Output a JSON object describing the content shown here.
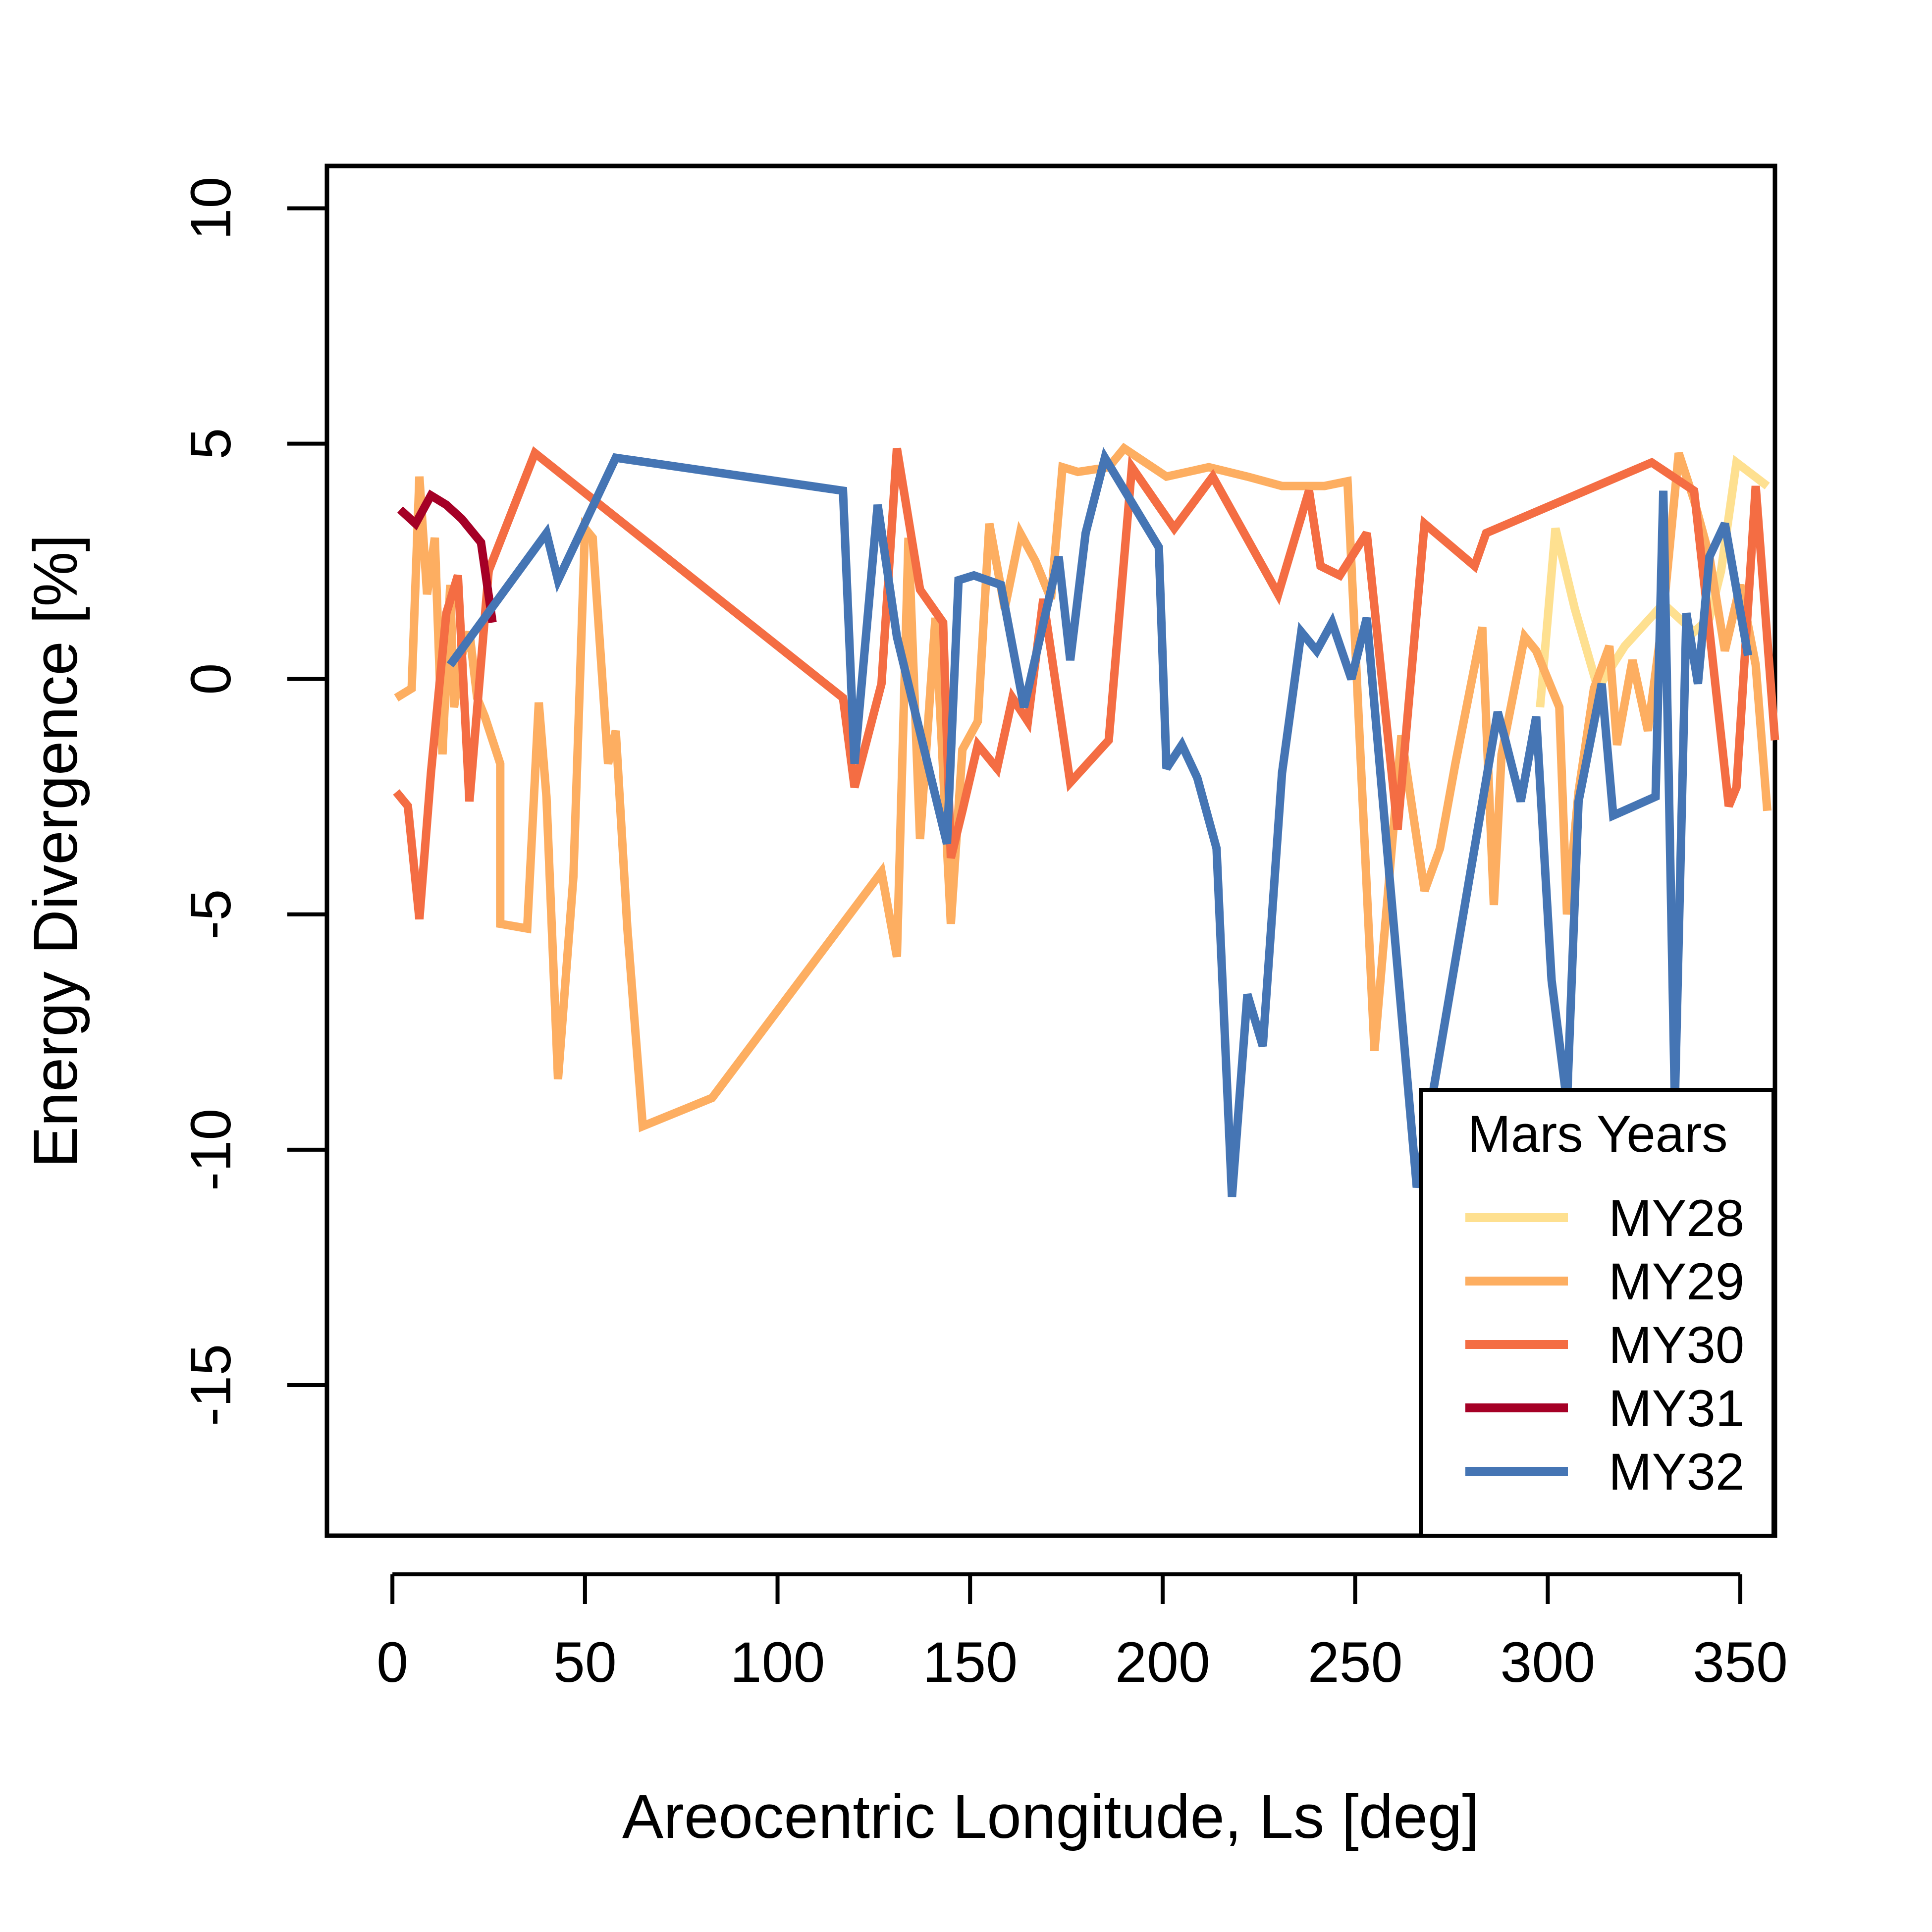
{
  "chart_data": {
    "type": "line",
    "title": "",
    "xlabel": "Areocentric Longitude, Ls [deg]",
    "ylabel": "Energy Divergence [%]",
    "xlim": [
      -17,
      359
    ],
    "ylim": [
      -18.2,
      10.9
    ],
    "xticks": [
      0,
      50,
      100,
      150,
      200,
      250,
      300,
      350
    ],
    "xtick_labels": [
      "0",
      "50",
      "100",
      "150",
      "200",
      "250",
      "300",
      "350"
    ],
    "yticks": [
      -15,
      -10,
      -5,
      0,
      5,
      10
    ],
    "ytick_labels": [
      "-15",
      "-10",
      "-5",
      "0",
      "5",
      "10"
    ],
    "grid": false,
    "legend": {
      "title": "Mars Years",
      "position": "bottom-right"
    },
    "series": [
      {
        "name": "MY28",
        "color": "#FEE090",
        "x": [
          298,
          302,
          307,
          313,
          320,
          330,
          338,
          342,
          345,
          349,
          357
        ],
        "y": [
          -0.6,
          3.2,
          1.5,
          -0.2,
          0.7,
          1.6,
          1.0,
          1.3,
          2.3,
          4.6,
          4.1
        ]
      },
      {
        "name": "MY29",
        "color": "#FDAE61",
        "x": [
          1,
          5,
          7,
          9,
          11,
          13,
          15,
          16,
          18,
          20,
          22,
          24,
          28,
          28,
          35,
          38,
          40,
          43,
          47,
          50,
          52,
          56,
          58,
          61,
          65,
          83,
          127,
          131,
          134,
          137,
          141,
          145,
          148,
          152,
          155,
          159,
          163,
          167,
          171,
          174,
          178,
          186,
          190,
          201,
          212,
          222,
          231,
          242,
          248,
          255,
          262,
          268,
          272,
          276,
          283,
          286,
          288,
          294,
          297,
          303,
          305,
          308,
          312,
          316,
          318,
          322,
          326,
          330,
          334,
          338,
          342,
          346,
          350,
          354,
          357
        ],
        "y": [
          -0.4,
          -0.2,
          4.3,
          1.8,
          3.0,
          -1.6,
          2.0,
          -0.6,
          0.5,
          1.0,
          -0.4,
          -0.8,
          -1.8,
          -5.2,
          -5.3,
          -0.5,
          -2.5,
          -8.5,
          -4.2,
          3.2,
          3.0,
          -1.8,
          -1.1,
          -5.3,
          -9.5,
          -8.9,
          -4.1,
          -5.9,
          3.0,
          -3.4,
          1.3,
          -5.2,
          -1.5,
          -0.9,
          3.3,
          1.5,
          3.1,
          2.5,
          1.7,
          4.5,
          4.4,
          4.5,
          4.9,
          4.3,
          4.5,
          4.3,
          4.1,
          4.1,
          4.2,
          -7.9,
          -1.2,
          -4.5,
          -3.6,
          -1.8,
          1.1,
          -4.8,
          -1.6,
          0.9,
          0.6,
          -0.6,
          -5.0,
          -2.4,
          -0.2,
          0.7,
          -1.4,
          0.4,
          -1.1,
          1.4,
          4.8,
          3.8,
          2.6,
          0.6,
          2.0,
          0.3,
          -2.8
        ]
      },
      {
        "name": "MY30",
        "color": "#F46D43",
        "x": [
          1,
          4,
          7,
          10,
          14,
          17,
          20,
          25,
          37,
          117,
          120,
          127,
          131,
          137,
          143,
          145,
          148,
          152,
          157,
          161,
          165,
          169,
          176,
          186,
          192,
          203,
          213,
          230,
          238,
          241,
          246,
          253,
          261,
          268,
          281,
          284,
          327,
          338,
          347,
          349,
          354,
          359
        ],
        "y": [
          -2.4,
          -2.7,
          -5.1,
          -2.0,
          1.4,
          2.2,
          -2.6,
          2.3,
          4.8,
          -0.4,
          -2.3,
          -0.1,
          4.9,
          1.9,
          1.2,
          -3.8,
          -2.8,
          -1.4,
          -1.9,
          -0.4,
          -0.9,
          1.7,
          -2.2,
          -1.3,
          4.5,
          3.2,
          4.3,
          1.8,
          4.0,
          2.4,
          2.2,
          3.1,
          -3.2,
          3.3,
          2.4,
          3.1,
          4.6,
          4.0,
          -2.7,
          -2.3,
          4.1,
          -1.3
        ]
      },
      {
        "name": "MY31",
        "color": "#A50026",
        "x": [
          2,
          6,
          10,
          14,
          18,
          23,
          26
        ],
        "y": [
          3.6,
          3.3,
          3.9,
          3.7,
          3.4,
          2.9,
          1.2
        ]
      },
      {
        "name": "MY32",
        "color": "#4575B4",
        "x": [
          15,
          40,
          43,
          58,
          117,
          120,
          126,
          131,
          144,
          147,
          151,
          158,
          164,
          173,
          176,
          180,
          185,
          199,
          201,
          205,
          209,
          214,
          218,
          222,
          226,
          231,
          236,
          238,
          240,
          244,
          249,
          253,
          266,
          287,
          289,
          293,
          297,
          301,
          305,
          308,
          314,
          317,
          328,
          330,
          333,
          336,
          339,
          342,
          346,
          352
        ],
        "y": [
          0.3,
          3.1,
          2.1,
          4.7,
          4.0,
          -1.8,
          3.7,
          0.9,
          -3.5,
          2.1,
          2.2,
          2.0,
          -0.6,
          2.6,
          0.4,
          3.1,
          4.7,
          2.8,
          -1.9,
          -1.4,
          -2.1,
          -3.6,
          -11.0,
          -6.7,
          -7.8,
          -2.0,
          1.0,
          0.8,
          0.6,
          1.2,
          0.0,
          1.3,
          -10.8,
          -0.7,
          -1.3,
          -2.6,
          -0.8,
          -6.4,
          -9.0,
          -2.6,
          -0.1,
          -2.9,
          -2.5,
          4.0,
          -9.0,
          1.4,
          -0.1,
          2.6,
          3.3,
          0.5
        ]
      }
    ]
  }
}
